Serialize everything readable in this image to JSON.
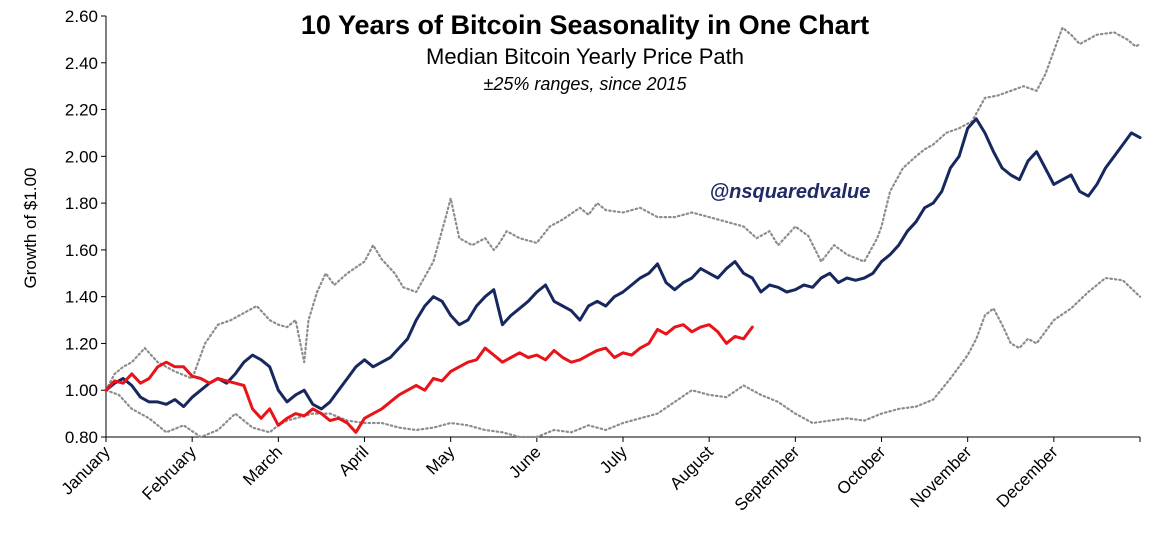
{
  "chart_data": {
    "type": "line",
    "title": "10 Years of Bitcoin Seasonality in One Chart",
    "subtitle": "Median Bitcoin Yearly Price Path",
    "subsubtitle": "±25% ranges, since 2015",
    "annotation": "@nsquaredvalue",
    "ylabel": "Growth of $1.00",
    "xlabel": "",
    "ylim": [
      0.8,
      2.6
    ],
    "yticks": [
      "0.80",
      "1.00",
      "1.20",
      "1.40",
      "1.60",
      "1.80",
      "2.00",
      "2.20",
      "2.40",
      "2.60"
    ],
    "xlim": [
      0,
      12
    ],
    "categories": [
      "January",
      "February",
      "March",
      "April",
      "May",
      "June",
      "July",
      "August",
      "September",
      "October",
      "November",
      "December"
    ],
    "grid": false,
    "legend": "none",
    "series": [
      {
        "style": "dotted",
        "color": "#8c8c8c",
        "x": [
          0,
          0.1,
          0.2,
          0.3,
          0.45,
          0.6,
          0.8,
          1.0,
          1.15,
          1.3,
          1.45,
          1.6,
          1.75,
          1.9,
          2.0,
          2.1,
          2.2,
          2.3,
          2.35,
          2.45,
          2.55,
          2.65,
          2.8,
          3.0,
          3.1,
          3.2,
          3.35,
          3.45,
          3.6,
          3.8,
          3.95,
          4.0,
          4.1,
          4.25,
          4.4,
          4.5,
          4.55,
          4.65,
          4.8,
          5.0,
          5.15,
          5.3,
          5.5,
          5.6,
          5.7,
          5.8,
          6.0,
          6.2,
          6.4,
          6.6,
          6.8,
          7.0,
          7.2,
          7.4,
          7.55,
          7.7,
          7.8,
          7.9,
          8.0,
          8.15,
          8.3,
          8.45,
          8.6,
          8.8,
          8.95,
          9.0,
          9.1,
          9.25,
          9.4,
          9.5,
          9.6,
          9.75,
          9.9,
          10.05,
          10.2,
          10.35,
          10.5,
          10.65,
          10.8,
          10.9,
          11.0,
          11.1,
          11.2,
          11.3,
          11.5,
          11.7,
          11.85,
          11.95,
          12.0
        ],
        "values": [
          1.0,
          1.07,
          1.1,
          1.12,
          1.18,
          1.12,
          1.08,
          1.05,
          1.2,
          1.28,
          1.3,
          1.33,
          1.36,
          1.3,
          1.28,
          1.27,
          1.3,
          1.12,
          1.3,
          1.42,
          1.5,
          1.45,
          1.5,
          1.55,
          1.62,
          1.56,
          1.5,
          1.44,
          1.42,
          1.55,
          1.75,
          1.82,
          1.65,
          1.62,
          1.65,
          1.6,
          1.62,
          1.68,
          1.65,
          1.63,
          1.7,
          1.73,
          1.78,
          1.75,
          1.8,
          1.77,
          1.76,
          1.78,
          1.74,
          1.74,
          1.76,
          1.74,
          1.72,
          1.7,
          1.65,
          1.68,
          1.62,
          1.66,
          1.7,
          1.66,
          1.55,
          1.62,
          1.58,
          1.55,
          1.65,
          1.7,
          1.85,
          1.95,
          2.0,
          2.03,
          2.05,
          2.1,
          2.12,
          2.15,
          2.25,
          2.26,
          2.28,
          2.3,
          2.28,
          2.35,
          2.45,
          2.55,
          2.52,
          2.48,
          2.52,
          2.53,
          2.5,
          2.47,
          2.48
        ]
      },
      {
        "style": "dotted",
        "color": "#8c8c8c",
        "x": [
          0,
          0.15,
          0.3,
          0.5,
          0.7,
          0.9,
          1.1,
          1.3,
          1.5,
          1.7,
          1.9,
          2.0,
          2.1,
          2.2,
          2.4,
          2.6,
          2.8,
          3.0,
          3.2,
          3.4,
          3.6,
          3.8,
          4.0,
          4.2,
          4.4,
          4.6,
          4.8,
          5.0,
          5.2,
          5.4,
          5.6,
          5.8,
          6.0,
          6.2,
          6.4,
          6.6,
          6.8,
          7.0,
          7.2,
          7.4,
          7.6,
          7.8,
          8.0,
          8.2,
          8.4,
          8.6,
          8.8,
          9.0,
          9.2,
          9.4,
          9.6,
          9.8,
          10.0,
          10.1,
          10.2,
          10.3,
          10.4,
          10.5,
          10.6,
          10.7,
          10.8,
          10.9,
          11.0,
          11.2,
          11.4,
          11.6,
          11.8,
          12.0
        ],
        "values": [
          1.0,
          0.98,
          0.92,
          0.88,
          0.82,
          0.85,
          0.8,
          0.83,
          0.9,
          0.84,
          0.82,
          0.85,
          0.87,
          0.88,
          0.9,
          0.9,
          0.87,
          0.86,
          0.86,
          0.84,
          0.83,
          0.84,
          0.86,
          0.85,
          0.83,
          0.82,
          0.8,
          0.8,
          0.83,
          0.82,
          0.85,
          0.83,
          0.86,
          0.88,
          0.9,
          0.95,
          1.0,
          0.98,
          0.97,
          1.02,
          0.98,
          0.95,
          0.9,
          0.86,
          0.87,
          0.88,
          0.87,
          0.9,
          0.92,
          0.93,
          0.96,
          1.05,
          1.15,
          1.22,
          1.32,
          1.35,
          1.28,
          1.2,
          1.18,
          1.22,
          1.2,
          1.25,
          1.3,
          1.35,
          1.42,
          1.48,
          1.47,
          1.4
        ]
      },
      {
        "style": "solid",
        "color": "#17285e",
        "x": [
          0,
          0.1,
          0.2,
          0.3,
          0.4,
          0.5,
          0.6,
          0.7,
          0.8,
          0.9,
          1.0,
          1.1,
          1.2,
          1.3,
          1.4,
          1.5,
          1.6,
          1.7,
          1.8,
          1.9,
          2.0,
          2.1,
          2.2,
          2.3,
          2.4,
          2.5,
          2.6,
          2.7,
          2.8,
          2.9,
          3.0,
          3.1,
          3.2,
          3.3,
          3.4,
          3.5,
          3.6,
          3.7,
          3.8,
          3.9,
          4.0,
          4.1,
          4.2,
          4.3,
          4.4,
          4.5,
          4.6,
          4.7,
          4.8,
          4.9,
          5.0,
          5.1,
          5.2,
          5.3,
          5.4,
          5.5,
          5.6,
          5.7,
          5.8,
          5.9,
          6.0,
          6.1,
          6.2,
          6.3,
          6.4,
          6.5,
          6.6,
          6.7,
          6.8,
          6.9,
          7.0,
          7.1,
          7.2,
          7.3,
          7.4,
          7.5,
          7.6,
          7.7,
          7.8,
          7.9,
          8.0,
          8.1,
          8.2,
          8.3,
          8.4,
          8.5,
          8.6,
          8.7,
          8.8,
          8.9,
          9.0,
          9.1,
          9.2,
          9.3,
          9.4,
          9.5,
          9.6,
          9.7,
          9.8,
          9.9,
          10.0,
          10.1,
          10.2,
          10.3,
          10.4,
          10.5,
          10.6,
          10.7,
          10.8,
          10.9,
          11.0,
          11.1,
          11.2,
          11.3,
          11.4,
          11.5,
          11.6,
          11.7,
          11.8,
          11.9,
          12.0
        ],
        "values": [
          1.0,
          1.03,
          1.05,
          1.02,
          0.97,
          0.95,
          0.95,
          0.94,
          0.96,
          0.93,
          0.97,
          1.0,
          1.03,
          1.05,
          1.03,
          1.07,
          1.12,
          1.15,
          1.13,
          1.1,
          1.0,
          0.95,
          0.98,
          1.0,
          0.94,
          0.92,
          0.95,
          1.0,
          1.05,
          1.1,
          1.13,
          1.1,
          1.12,
          1.14,
          1.18,
          1.22,
          1.3,
          1.36,
          1.4,
          1.38,
          1.32,
          1.28,
          1.3,
          1.36,
          1.4,
          1.43,
          1.28,
          1.32,
          1.35,
          1.38,
          1.42,
          1.45,
          1.38,
          1.36,
          1.34,
          1.3,
          1.36,
          1.38,
          1.36,
          1.4,
          1.42,
          1.45,
          1.48,
          1.5,
          1.54,
          1.46,
          1.43,
          1.46,
          1.48,
          1.52,
          1.5,
          1.48,
          1.52,
          1.55,
          1.5,
          1.48,
          1.42,
          1.45,
          1.44,
          1.42,
          1.43,
          1.45,
          1.44,
          1.48,
          1.5,
          1.46,
          1.48,
          1.47,
          1.48,
          1.5,
          1.55,
          1.58,
          1.62,
          1.68,
          1.72,
          1.78,
          1.8,
          1.85,
          1.95,
          2.0,
          2.12,
          2.16,
          2.1,
          2.02,
          1.95,
          1.92,
          1.9,
          1.98,
          2.02,
          1.95,
          1.88,
          1.9,
          1.92,
          1.85,
          1.83,
          1.88,
          1.95,
          2.0,
          2.05,
          2.1,
          2.08
        ]
      },
      {
        "style": "solid",
        "color": "#e8141a",
        "x": [
          0,
          0.1,
          0.2,
          0.3,
          0.4,
          0.5,
          0.6,
          0.7,
          0.8,
          0.9,
          1.0,
          1.1,
          1.2,
          1.3,
          1.4,
          1.5,
          1.6,
          1.7,
          1.8,
          1.9,
          2.0,
          2.1,
          2.2,
          2.3,
          2.4,
          2.5,
          2.6,
          2.7,
          2.8,
          2.9,
          3.0,
          3.1,
          3.2,
          3.3,
          3.4,
          3.5,
          3.6,
          3.7,
          3.8,
          3.9,
          4.0,
          4.1,
          4.2,
          4.3,
          4.4,
          4.5,
          4.6,
          4.7,
          4.8,
          4.9,
          5.0,
          5.1,
          5.2,
          5.3,
          5.4,
          5.5,
          5.6,
          5.7,
          5.8,
          5.9,
          6.0,
          6.1,
          6.2,
          6.3,
          6.4,
          6.5,
          6.6,
          6.7,
          6.8,
          6.9,
          7.0,
          7.1,
          7.2,
          7.3,
          7.4,
          7.5
        ],
        "values": [
          1.0,
          1.04,
          1.03,
          1.07,
          1.03,
          1.05,
          1.1,
          1.12,
          1.1,
          1.1,
          1.06,
          1.05,
          1.03,
          1.05,
          1.04,
          1.03,
          1.02,
          0.92,
          0.88,
          0.92,
          0.85,
          0.88,
          0.9,
          0.89,
          0.92,
          0.9,
          0.87,
          0.88,
          0.86,
          0.82,
          0.88,
          0.9,
          0.92,
          0.95,
          0.98,
          1.0,
          1.02,
          1.0,
          1.05,
          1.04,
          1.08,
          1.1,
          1.12,
          1.13,
          1.18,
          1.15,
          1.12,
          1.14,
          1.16,
          1.14,
          1.15,
          1.13,
          1.17,
          1.14,
          1.12,
          1.13,
          1.15,
          1.17,
          1.18,
          1.14,
          1.16,
          1.15,
          1.18,
          1.2,
          1.26,
          1.24,
          1.27,
          1.28,
          1.25,
          1.27,
          1.28,
          1.25,
          1.2,
          1.23,
          1.22,
          1.27
        ]
      }
    ]
  }
}
